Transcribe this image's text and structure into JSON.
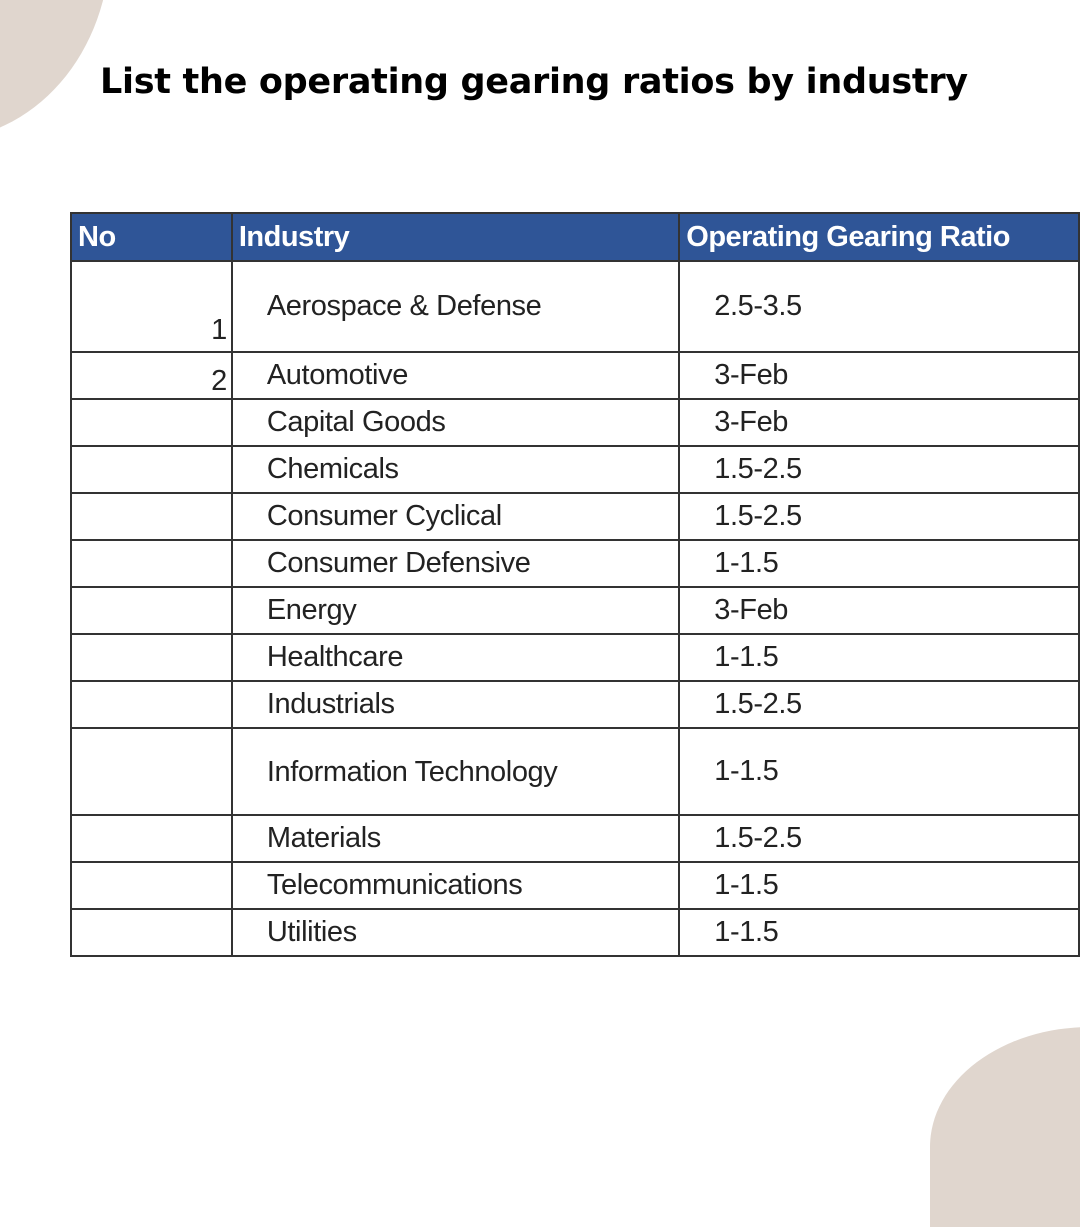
{
  "title": "List the operating gearing ratios by industry",
  "colors": {
    "header_bg": "#2f5597",
    "header_text": "#ffffff",
    "accent_shape": "#e0d6ce"
  },
  "table": {
    "headers": [
      "No",
      "Industry",
      "Operating Gearing Ratio"
    ],
    "rows": [
      {
        "no": "1",
        "industry": "Aerospace & Defense",
        "ratio": "2.5-3.5"
      },
      {
        "no": "2",
        "industry": "Automotive",
        "ratio": "3-Feb"
      },
      {
        "no": "",
        "industry": "Capital Goods",
        "ratio": "3-Feb"
      },
      {
        "no": "",
        "industry": "Chemicals",
        "ratio": "1.5-2.5"
      },
      {
        "no": "",
        "industry": "Consumer Cyclical",
        "ratio": "1.5-2.5"
      },
      {
        "no": "",
        "industry": "Consumer Defensive",
        "ratio": "1-1.5"
      },
      {
        "no": "",
        "industry": "Energy",
        "ratio": "3-Feb"
      },
      {
        "no": "",
        "industry": "Healthcare",
        "ratio": "1-1.5"
      },
      {
        "no": "",
        "industry": "Industrials",
        "ratio": "1.5-2.5"
      },
      {
        "no": "",
        "industry": "Information Technology",
        "ratio": "1-1.5"
      },
      {
        "no": "",
        "industry": "Materials",
        "ratio": "1.5-2.5"
      },
      {
        "no": "",
        "industry": "Telecommunications",
        "ratio": "1-1.5"
      },
      {
        "no": "",
        "industry": "Utilities",
        "ratio": "1-1.5"
      }
    ]
  }
}
